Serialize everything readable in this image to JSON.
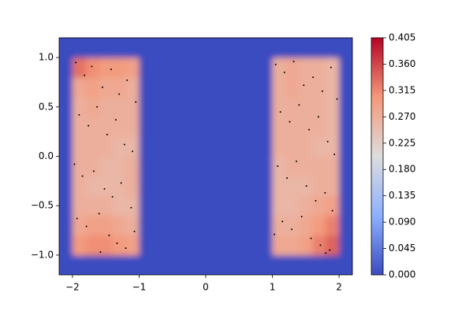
{
  "chart_data": {
    "type": "heatmap",
    "xlim": [
      -2.2,
      2.2
    ],
    "ylim": [
      -1.2,
      1.2
    ],
    "xticks": [
      {
        "value": -2,
        "label": "−2"
      },
      {
        "value": -1,
        "label": "−1"
      },
      0,
      1,
      2
    ],
    "yticks": [
      {
        "value": -1,
        "label": "−1.0"
      },
      {
        "value": -0.5,
        "label": "−0.5"
      },
      {
        "value": 0,
        "label": "0.0"
      },
      {
        "value": 0.5,
        "label": "0.5"
      },
      {
        "value": 1,
        "label": "1.0"
      }
    ],
    "xbins": [
      -2.2,
      -2.0,
      -1.8,
      -1.6,
      -1.4,
      -1.2,
      -1.0,
      -0.8,
      -0.6,
      -0.4,
      -0.2,
      0.0,
      0.2,
      0.4,
      0.6,
      0.8,
      1.0,
      1.2,
      1.4,
      1.6,
      1.8,
      2.0,
      2.2
    ],
    "ybins": [
      -1.2,
      -1.0,
      -0.8,
      -0.6,
      -0.4,
      -0.2,
      0.0,
      0.2,
      0.4,
      0.6,
      0.8,
      1.0,
      1.2
    ],
    "z": [
      [
        0,
        0,
        0,
        0,
        0,
        0,
        0,
        0,
        0,
        0,
        0,
        0,
        0,
        0,
        0,
        0,
        0,
        0,
        0,
        0,
        0,
        0
      ],
      [
        0,
        0.3,
        0.31,
        0.31,
        0.3,
        0.29,
        0,
        0,
        0,
        0,
        0,
        0,
        0,
        0,
        0,
        0,
        0.28,
        0.28,
        0.29,
        0.32,
        0.34,
        0
      ],
      [
        0,
        0.28,
        0.29,
        0.29,
        0.28,
        0.27,
        0,
        0,
        0,
        0,
        0,
        0,
        0,
        0,
        0,
        0,
        0.27,
        0.27,
        0.28,
        0.3,
        0.32,
        0
      ],
      [
        0,
        0.27,
        0.27,
        0.27,
        0.26,
        0.26,
        0,
        0,
        0,
        0,
        0,
        0,
        0,
        0,
        0,
        0,
        0.26,
        0.26,
        0.27,
        0.28,
        0.29,
        0
      ],
      [
        0,
        0.27,
        0.26,
        0.26,
        0.26,
        0.27,
        0,
        0,
        0,
        0,
        0,
        0,
        0,
        0,
        0,
        0,
        0.26,
        0.26,
        0.26,
        0.27,
        0.27,
        0
      ],
      [
        0,
        0.27,
        0.27,
        0.26,
        0.26,
        0.27,
        0,
        0,
        0,
        0,
        0,
        0,
        0,
        0,
        0,
        0,
        0.26,
        0.27,
        0.27,
        0.27,
        0.27,
        0
      ],
      [
        0,
        0.27,
        0.27,
        0.27,
        0.26,
        0.26,
        0,
        0,
        0,
        0,
        0,
        0,
        0,
        0,
        0,
        0,
        0.27,
        0.27,
        0.27,
        0.26,
        0.26,
        0
      ],
      [
        0,
        0.27,
        0.27,
        0.27,
        0.27,
        0.27,
        0,
        0,
        0,
        0,
        0,
        0,
        0,
        0,
        0,
        0,
        0.27,
        0.27,
        0.27,
        0.27,
        0.26,
        0
      ],
      [
        0,
        0.27,
        0.28,
        0.27,
        0.27,
        0.27,
        0,
        0,
        0,
        0,
        0,
        0,
        0,
        0,
        0,
        0,
        0.27,
        0.27,
        0.27,
        0.27,
        0.26,
        0
      ],
      [
        0,
        0.28,
        0.29,
        0.28,
        0.28,
        0.27,
        0,
        0,
        0,
        0,
        0,
        0,
        0,
        0,
        0,
        0,
        0.27,
        0.28,
        0.27,
        0.27,
        0.26,
        0
      ],
      [
        0,
        0.33,
        0.31,
        0.3,
        0.3,
        0.29,
        0,
        0,
        0,
        0,
        0,
        0,
        0,
        0,
        0,
        0,
        0.27,
        0.28,
        0.27,
        0.27,
        0.26,
        0
      ],
      [
        0,
        0,
        0,
        0,
        0,
        0,
        0,
        0,
        0,
        0,
        0,
        0,
        0,
        0,
        0,
        0,
        0,
        0,
        0,
        0,
        0,
        0
      ]
    ],
    "zlim": [
      0,
      0.405
    ],
    "colormap": [
      "#3b4cc0",
      "#8db0fe",
      "#dddddd",
      "#f4987a",
      "#b40426"
    ],
    "colorbar_ticks": [
      {
        "value": 0,
        "label": "0.000"
      },
      {
        "value": 0.045,
        "label": "0.045"
      },
      {
        "value": 0.09,
        "label": "0.090"
      },
      {
        "value": 0.135,
        "label": "0.135"
      },
      {
        "value": 0.18,
        "label": "0.180"
      },
      {
        "value": 0.225,
        "label": "0.225"
      },
      {
        "value": 0.27,
        "label": "0.270"
      },
      {
        "value": 0.315,
        "label": "0.315"
      },
      {
        "value": 0.36,
        "label": "0.360"
      },
      {
        "value": 0.405,
        "label": "0.405"
      }
    ],
    "points": {
      "color": "#000000",
      "x": [
        -1.95,
        -1.82,
        -1.71,
        -1.55,
        -1.42,
        -1.3,
        -1.18,
        -1.05,
        -1.9,
        -1.76,
        -1.63,
        -1.48,
        -1.35,
        -1.22,
        -1.1,
        -1.97,
        -1.85,
        -1.68,
        -1.52,
        -1.4,
        -1.27,
        -1.12,
        -1.93,
        -1.79,
        -1.6,
        -1.45,
        -1.33,
        -1.2,
        -1.07,
        -1.58,
        1.05,
        1.18,
        1.32,
        1.47,
        1.61,
        1.75,
        1.88,
        1.97,
        1.12,
        1.26,
        1.4,
        1.55,
        1.69,
        1.83,
        1.93,
        1.08,
        1.22,
        1.36,
        1.51,
        1.65,
        1.79,
        1.9,
        1.15,
        1.29,
        1.44,
        1.58,
        1.72,
        1.86,
        1.03,
        1.8
      ],
      "y": [
        0.95,
        0.82,
        0.91,
        0.7,
        0.88,
        0.63,
        0.77,
        0.55,
        0.42,
        0.31,
        0.5,
        0.22,
        0.37,
        0.12,
        0.05,
        -0.08,
        -0.2,
        -0.15,
        -0.33,
        -0.41,
        -0.27,
        -0.52,
        -0.63,
        -0.71,
        -0.58,
        -0.8,
        -0.88,
        -0.93,
        -0.76,
        -0.97,
        0.93,
        0.85,
        0.96,
        0.72,
        0.8,
        0.66,
        0.9,
        0.58,
        0.45,
        0.35,
        0.52,
        0.27,
        0.4,
        0.15,
        0.02,
        -0.1,
        -0.22,
        -0.05,
        -0.3,
        -0.45,
        -0.37,
        -0.55,
        -0.66,
        -0.74,
        -0.61,
        -0.83,
        -0.9,
        -0.95,
        -0.79,
        -0.98
      ]
    }
  }
}
